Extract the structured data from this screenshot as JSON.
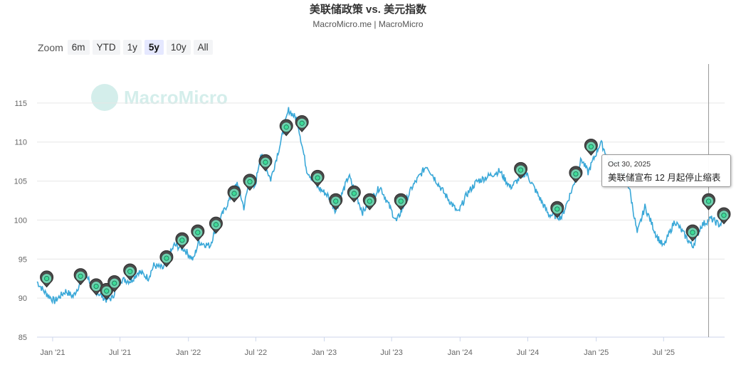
{
  "title": "美联储政策 vs. 美元指数",
  "subtitle": "MacroMicro.me | MacroMicro",
  "watermark": "MacroMicro",
  "zoom": {
    "label": "Zoom",
    "options": [
      "6m",
      "YTD",
      "1y",
      "5y",
      "10y",
      "All"
    ],
    "selected": "5y"
  },
  "tooltip": {
    "date": "Oct 30, 2025",
    "text": "美联储宣布 12 月起停止缩表"
  },
  "colors": {
    "line": "#3aa8d8",
    "marker_fill": "#4a4a4a",
    "marker_dot": "#3ddc97",
    "grid": "#e6e6e6",
    "crosshair": "#999999"
  },
  "chart_data": {
    "type": "line",
    "title": "美联储政策 vs. 美元指数",
    "x_range": [
      "2020-11-20",
      "2025-12-12"
    ],
    "ylim": [
      85,
      120
    ],
    "y_ticks": [
      85,
      90,
      95,
      100,
      105,
      110,
      115
    ],
    "x_tick_labels": [
      {
        "date": "2021-01-01",
        "label": "Jan '21"
      },
      {
        "date": "2021-07-01",
        "label": "Jul '21"
      },
      {
        "date": "2022-01-01",
        "label": "Jan '22"
      },
      {
        "date": "2022-07-01",
        "label": "Jul '22"
      },
      {
        "date": "2023-01-01",
        "label": "Jan '23"
      },
      {
        "date": "2023-07-01",
        "label": "Jul '23"
      },
      {
        "date": "2024-01-01",
        "label": "Jan '24"
      },
      {
        "date": "2024-07-01",
        "label": "Jul '24"
      },
      {
        "date": "2025-01-01",
        "label": "Jan '25"
      },
      {
        "date": "2025-07-01",
        "label": "Jul '25"
      }
    ],
    "grid": true,
    "series": [
      {
        "values": [
          [
            "2020-11-20",
            92.1
          ],
          [
            "2020-12-10",
            90.8
          ],
          [
            "2021-01-06",
            89.6
          ],
          [
            "2021-02-05",
            90.9
          ],
          [
            "2021-02-25",
            90.2
          ],
          [
            "2021-03-31",
            93.3
          ],
          [
            "2021-04-20",
            91.2
          ],
          [
            "2021-05-25",
            89.8
          ],
          [
            "2021-06-10",
            90.0
          ],
          [
            "2021-06-30",
            92.4
          ],
          [
            "2021-07-30",
            92.2
          ],
          [
            "2021-08-20",
            93.4
          ],
          [
            "2021-09-15",
            92.6
          ],
          [
            "2021-09-30",
            94.2
          ],
          [
            "2021-10-25",
            93.8
          ],
          [
            "2021-11-24",
            96.8
          ],
          [
            "2021-12-20",
            96.3
          ],
          [
            "2022-01-14",
            94.9
          ],
          [
            "2022-01-28",
            97.2
          ],
          [
            "2022-02-28",
            96.7
          ],
          [
            "2022-03-15",
            98.9
          ],
          [
            "2022-04-28",
            103.3
          ],
          [
            "2022-05-12",
            104.8
          ],
          [
            "2022-05-30",
            101.6
          ],
          [
            "2022-06-15",
            105.4
          ],
          [
            "2022-06-28",
            104.0
          ],
          [
            "2022-07-14",
            108.5
          ],
          [
            "2022-08-10",
            105.2
          ],
          [
            "2022-09-05",
            109.8
          ],
          [
            "2022-09-27",
            114.1
          ],
          [
            "2022-10-20",
            112.9
          ],
          [
            "2022-11-15",
            106.4
          ],
          [
            "2022-12-15",
            104.2
          ],
          [
            "2023-01-10",
            103.2
          ],
          [
            "2023-02-01",
            101.2
          ],
          [
            "2023-03-08",
            105.7
          ],
          [
            "2023-04-14",
            101.0
          ],
          [
            "2023-05-31",
            104.3
          ],
          [
            "2023-07-14",
            99.8
          ],
          [
            "2023-08-25",
            104.2
          ],
          [
            "2023-10-03",
            107.0
          ],
          [
            "2023-11-20",
            103.4
          ],
          [
            "2023-12-27",
            100.9
          ],
          [
            "2024-01-19",
            103.3
          ],
          [
            "2024-02-14",
            104.9
          ],
          [
            "2024-04-16",
            106.3
          ],
          [
            "2024-05-15",
            104.2
          ],
          [
            "2024-06-26",
            106.1
          ],
          [
            "2024-08-26",
            100.7
          ],
          [
            "2024-09-30",
            100.4
          ],
          [
            "2024-10-30",
            104.2
          ],
          [
            "2024-11-22",
            107.8
          ],
          [
            "2024-12-10",
            106.1
          ],
          [
            "2025-01-13",
            110.0
          ],
          [
            "2025-02-05",
            107.6
          ],
          [
            "2025-03-03",
            107.4
          ],
          [
            "2025-03-31",
            104.1
          ],
          [
            "2025-04-21",
            98.3
          ],
          [
            "2025-05-12",
            101.7
          ],
          [
            "2025-06-12",
            98.0
          ],
          [
            "2025-07-01",
            96.6
          ],
          [
            "2025-07-31",
            99.9
          ],
          [
            "2025-09-17",
            96.6
          ],
          [
            "2025-10-10",
            99.3
          ],
          [
            "2025-11-05",
            100.2
          ],
          [
            "2025-11-28",
            99.4
          ],
          [
            "2025-12-10",
            99.9
          ]
        ]
      }
    ],
    "event_markers": [
      [
        "2020-12-16",
        91.6
      ],
      [
        "2021-03-17",
        91.9
      ],
      [
        "2021-04-28",
        90.6
      ],
      [
        "2021-05-26",
        90.0
      ],
      [
        "2021-06-16",
        91.0
      ],
      [
        "2021-07-28",
        92.5
      ],
      [
        "2021-11-03",
        94.2
      ],
      [
        "2021-12-15",
        96.5
      ],
      [
        "2022-01-26",
        97.5
      ],
      [
        "2022-03-16",
        98.5
      ],
      [
        "2022-05-04",
        102.5
      ],
      [
        "2022-06-15",
        104.0
      ],
      [
        "2022-07-27",
        106.5
      ],
      [
        "2022-09-21",
        111.0
      ],
      [
        "2022-11-02",
        111.5
      ],
      [
        "2022-12-14",
        104.5
      ],
      [
        "2023-02-01",
        101.5
      ],
      [
        "2023-03-22",
        102.5
      ],
      [
        "2023-05-03",
        101.5
      ],
      [
        "2023-07-26",
        101.5
      ],
      [
        "2024-06-12",
        105.5
      ],
      [
        "2024-09-18",
        100.5
      ],
      [
        "2024-11-07",
        105.0
      ],
      [
        "2024-12-18",
        108.5
      ],
      [
        "2025-10-30",
        101.5
      ],
      [
        "2025-09-17",
        97.5
      ],
      [
        "2025-12-10",
        99.7
      ]
    ]
  }
}
